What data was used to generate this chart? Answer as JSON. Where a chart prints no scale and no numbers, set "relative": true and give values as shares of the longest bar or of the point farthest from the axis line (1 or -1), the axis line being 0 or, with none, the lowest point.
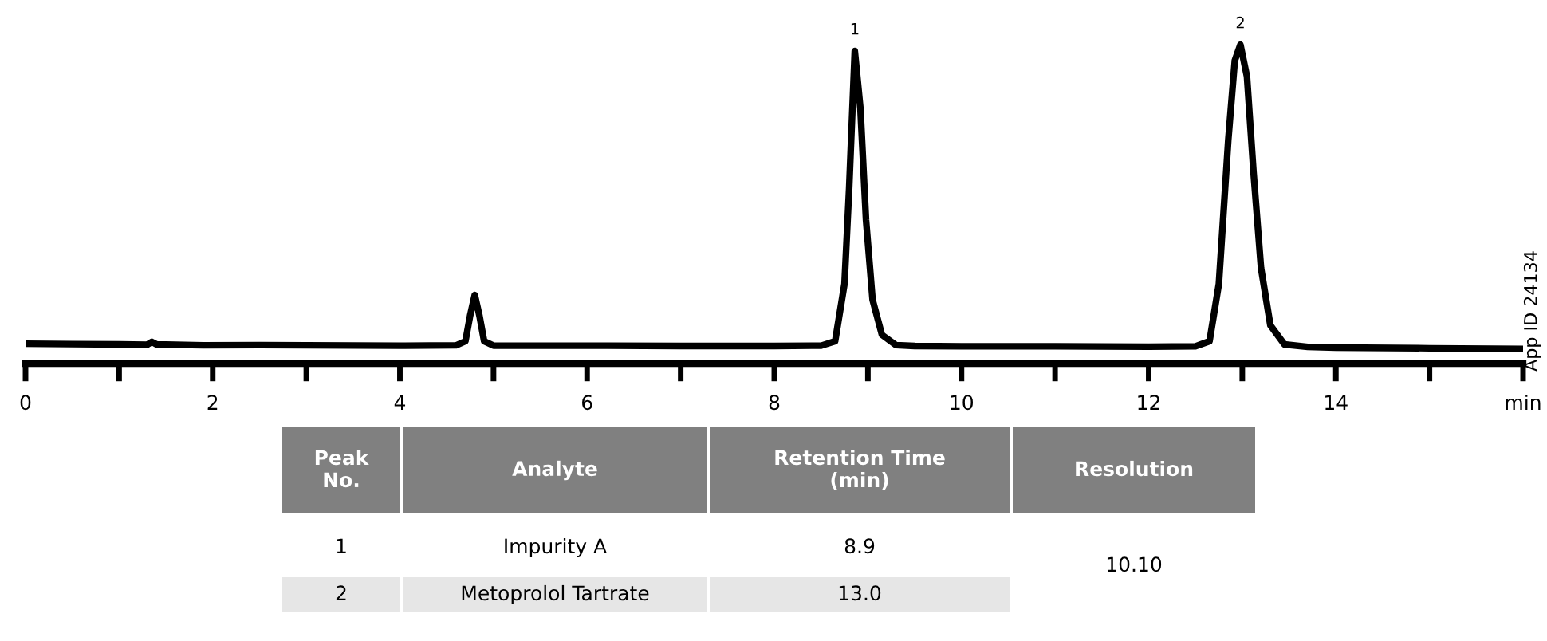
{
  "chart_data": {
    "type": "line",
    "relative": true,
    "series": [
      {
        "color": "#000000",
        "x": [
          0,
          0.5,
          1,
          1.3,
          1.35,
          1.4,
          1.9,
          2.5,
          3,
          4,
          4.6,
          4.7,
          4.75,
          4.8,
          4.85,
          4.9,
          5.0,
          6,
          7,
          8,
          8.5,
          8.65,
          8.75,
          8.8,
          8.86,
          8.92,
          8.98,
          9.05,
          9.15,
          9.3,
          9.5,
          10,
          11,
          12,
          12.5,
          12.65,
          12.75,
          12.85,
          12.92,
          12.98,
          13.05,
          13.12,
          13.2,
          13.3,
          13.45,
          13.7,
          14,
          15,
          16
        ],
        "values": [
          0.062,
          0.061,
          0.06,
          0.059,
          0.068,
          0.06,
          0.057,
          0.058,
          0.057,
          0.056,
          0.057,
          0.07,
          0.15,
          0.215,
          0.15,
          0.07,
          0.056,
          0.056,
          0.055,
          0.055,
          0.056,
          0.07,
          0.25,
          0.55,
          0.98,
          0.8,
          0.45,
          0.2,
          0.09,
          0.058,
          0.055,
          0.054,
          0.054,
          0.053,
          0.054,
          0.07,
          0.25,
          0.7,
          0.95,
          1,
          0.9,
          0.6,
          0.3,
          0.12,
          0.06,
          0.052,
          0.05,
          0.048,
          0.046
        ]
      }
    ],
    "xlim": [
      0,
      16
    ],
    "xticks": [
      0,
      {
        "value": 1,
        "label": null
      },
      2,
      {
        "value": 3,
        "label": null
      },
      4,
      {
        "value": 5,
        "label": null
      },
      6,
      {
        "value": 7,
        "label": null
      },
      8,
      {
        "value": 9,
        "label": null
      },
      10,
      {
        "value": 11,
        "label": null
      },
      12,
      {
        "value": 13,
        "label": null
      },
      14,
      {
        "value": 15,
        "label": null
      },
      {
        "value": 16,
        "label": "min"
      }
    ],
    "line_style": "solid",
    "annotations": [
      {
        "text": "1",
        "x": 8.86,
        "y": 0.98
      },
      {
        "text": "2",
        "x": 12.98,
        "y": 1
      },
      "App ID 24134",
      "Peak\nNo.",
      "Analyte",
      "Retention Time\n(min)",
      "Resolution",
      "1",
      "Impurity A",
      "8.9",
      "2",
      "Metoprolol Tartrate",
      "13.0",
      "10.10"
    ]
  }
}
